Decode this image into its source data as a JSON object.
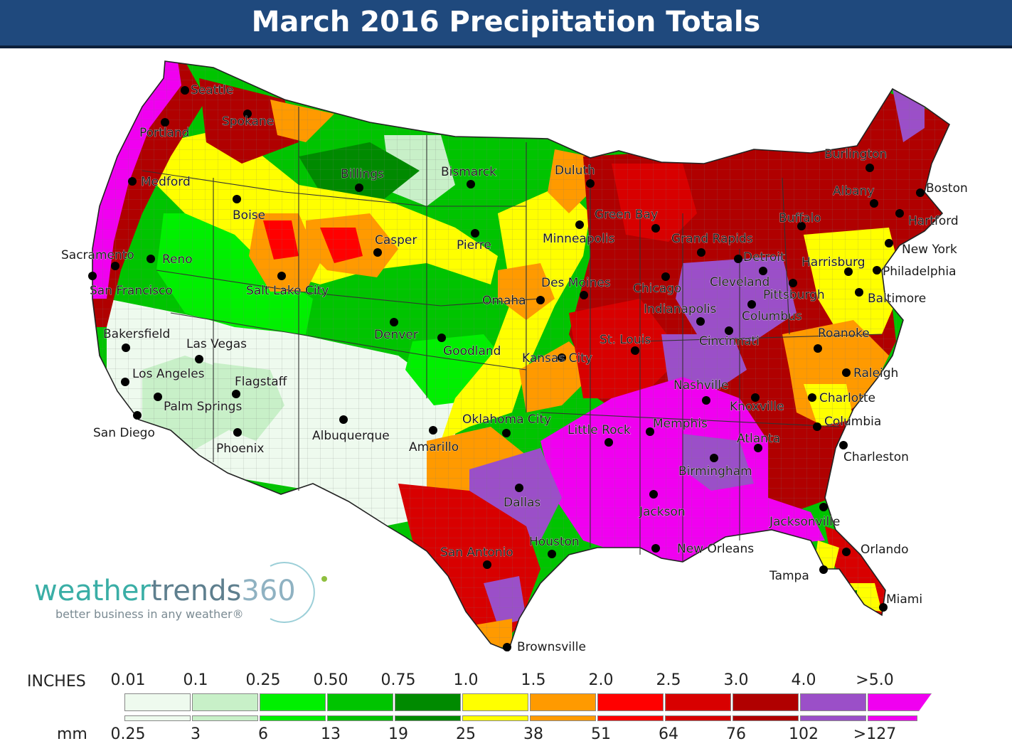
{
  "title": "March 2016 Precipitation Totals",
  "cities": [
    {
      "name": "Seattle"
    },
    {
      "name": "Spokane"
    },
    {
      "name": "Portland"
    },
    {
      "name": "Medford"
    },
    {
      "name": "Boise"
    },
    {
      "name": "Billings"
    },
    {
      "name": "Bismarck"
    },
    {
      "name": "Duluth"
    },
    {
      "name": "Burlington"
    },
    {
      "name": "Boston"
    },
    {
      "name": "Albany"
    },
    {
      "name": "Buffalo"
    },
    {
      "name": "Hartford"
    },
    {
      "name": "New York"
    },
    {
      "name": "Philadelphia"
    },
    {
      "name": "Harrisburg"
    },
    {
      "name": "Baltimore"
    },
    {
      "name": "Green Bay"
    },
    {
      "name": "Minneapolis"
    },
    {
      "name": "Grand Rapids"
    },
    {
      "name": "Detroit"
    },
    {
      "name": "Cleveland"
    },
    {
      "name": "Pittsburgh"
    },
    {
      "name": "Columbus"
    },
    {
      "name": "Chicago"
    },
    {
      "name": "Indianapolis"
    },
    {
      "name": "Cincinnati"
    },
    {
      "name": "Roanoke"
    },
    {
      "name": "Raleigh"
    },
    {
      "name": "Charlotte"
    },
    {
      "name": "Columbia"
    },
    {
      "name": "Charleston"
    },
    {
      "name": "Knoxville"
    },
    {
      "name": "Nashville"
    },
    {
      "name": "Atlanta"
    },
    {
      "name": "Birmingham"
    },
    {
      "name": "Memphis"
    },
    {
      "name": "Little Rock"
    },
    {
      "name": "St. Louis"
    },
    {
      "name": "Des Moines"
    },
    {
      "name": "Omaha"
    },
    {
      "name": "Kansas City"
    },
    {
      "name": "Pierre"
    },
    {
      "name": "Casper"
    },
    {
      "name": "Salt Lake City"
    },
    {
      "name": "Reno"
    },
    {
      "name": "Sacramento"
    },
    {
      "name": "San Francisco"
    },
    {
      "name": "Bakersfield"
    },
    {
      "name": "Las Vegas"
    },
    {
      "name": "Los Angeles"
    },
    {
      "name": "Palm Springs"
    },
    {
      "name": "San Diego"
    },
    {
      "name": "Flagstaff"
    },
    {
      "name": "Phoenix"
    },
    {
      "name": "Albuquerque"
    },
    {
      "name": "Amarillo"
    },
    {
      "name": "Oklahoma City"
    },
    {
      "name": "Denver"
    },
    {
      "name": "Goodland"
    },
    {
      "name": "Dallas"
    },
    {
      "name": "Houston"
    },
    {
      "name": "San Antonio"
    },
    {
      "name": "Brownsville"
    },
    {
      "name": "New Orleans"
    },
    {
      "name": "Jackson"
    },
    {
      "name": "Jacksonville"
    },
    {
      "name": "Orlando"
    },
    {
      "name": "Tampa"
    },
    {
      "name": "Miami"
    }
  ],
  "logo": {
    "brand_part1": "weather",
    "brand_part2": "trends",
    "brand_part3": "360",
    "tagline": "better business in any weather®"
  },
  "legend": {
    "inches_label": "INCHES",
    "mm_label": "mm",
    "inches_ticks": [
      "0.01",
      "0.1",
      "0.25",
      "0.50",
      "0.75",
      "1.0",
      "1.5",
      "2.0",
      "2.5",
      "3.0",
      "4.0",
      ">5.0"
    ],
    "mm_ticks": [
      "0.25",
      "3",
      "6",
      "13",
      "19",
      "25",
      "38",
      "51",
      "64",
      "76",
      "102",
      ">127"
    ],
    "colors": [
      "#eefaee",
      "#c8f0c8",
      "#00f000",
      "#00c400",
      "#008a00",
      "#ffff00",
      "#ff9a00",
      "#ff0000",
      "#d80000",
      "#b00000",
      "#9b4fc8",
      "#f000f0"
    ]
  }
}
